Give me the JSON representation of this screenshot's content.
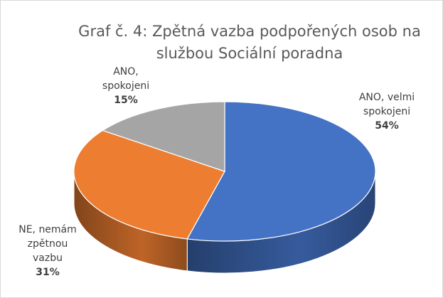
{
  "chart_data": {
    "type": "pie",
    "title": "Graf č. 4: Zpětná vazba podpořených osob na službou Sociální poradna",
    "categories": [
      "ANO, velmi spokojeni",
      "NE, nemám zpětnou vazbu",
      "ANO, spokojeni"
    ],
    "values": [
      54,
      31,
      15
    ],
    "value_labels": [
      "54%",
      "31%",
      "15%"
    ],
    "colors": [
      "#4472c4",
      "#ed7d31",
      "#a5a5a5"
    ],
    "three_d": true
  }
}
